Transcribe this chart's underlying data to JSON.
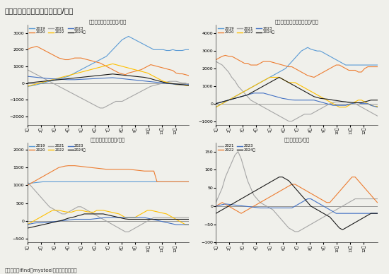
{
  "title": "图表：生猪养殖相关利润（元/头）",
  "source": "资料来源：ifind、mysteel、新湖期货研究所",
  "bg_color": "#f0f0eb",
  "header_bar_color": "#1a7070",
  "title_color": "#222222",
  "panel_titles": [
    "外购仔猪养殖利润（元/吨）",
    "自繁自养生猪养殖利润（元/吨）",
    "仔猪出售毛利润（元/头）",
    "屠宰利润（元/头）"
  ],
  "n_points": 52,
  "panel1": {
    "legend": [
      "2019",
      "2020",
      "2021",
      "2022",
      "2023",
      "2024年"
    ],
    "colors": [
      "#5b9bd5",
      "#ed7d31",
      "#a5a5a5",
      "#ffc000",
      "#4472c4",
      "#1a1a1a"
    ],
    "ylim": [
      -2500,
      3500
    ],
    "yticks": [
      -2000,
      -1000,
      0,
      1000,
      2000,
      3000
    ],
    "series": {
      "2019": [
        -200,
        -180,
        -150,
        -100,
        -50,
        0,
        50,
        100,
        150,
        200,
        250,
        300,
        350,
        400,
        500,
        600,
        700,
        800,
        900,
        1000,
        1100,
        1200,
        1300,
        1400,
        1500,
        1600,
        1800,
        2000,
        2200,
        2400,
        2600,
        2700,
        2800,
        2700,
        2600,
        2500,
        2400,
        2300,
        2200,
        2100,
        2000,
        2000,
        2000,
        2000,
        1950,
        1950,
        2000,
        1950,
        1950,
        1950,
        2000,
        2000
      ],
      "2020": [
        2000,
        2100,
        2150,
        2200,
        2100,
        2000,
        1900,
        1800,
        1700,
        1600,
        1500,
        1450,
        1400,
        1400,
        1450,
        1500,
        1500,
        1500,
        1450,
        1400,
        1350,
        1300,
        1250,
        1200,
        1100,
        1000,
        900,
        800,
        700,
        600,
        550,
        500,
        600,
        650,
        700,
        750,
        800,
        900,
        1000,
        1100,
        1050,
        1000,
        950,
        900,
        850,
        800,
        750,
        600,
        550,
        550,
        500,
        450
      ],
      "2021": [
        800,
        700,
        600,
        500,
        400,
        300,
        200,
        100,
        0,
        -100,
        -200,
        -300,
        -400,
        -500,
        -600,
        -700,
        -800,
        -900,
        -1000,
        -1100,
        -1200,
        -1300,
        -1400,
        -1500,
        -1500,
        -1400,
        -1300,
        -1200,
        -1100,
        -1100,
        -1100,
        -1000,
        -900,
        -800,
        -700,
        -600,
        -500,
        -400,
        -300,
        -200,
        -150,
        -100,
        -50,
        0,
        50,
        100,
        100,
        100,
        50,
        0,
        0,
        -100
      ],
      "2022": [
        -200,
        -150,
        -100,
        -50,
        0,
        50,
        100,
        150,
        200,
        250,
        300,
        350,
        400,
        450,
        500,
        550,
        600,
        650,
        700,
        750,
        800,
        850,
        900,
        950,
        1000,
        1050,
        1100,
        1150,
        1100,
        1050,
        1000,
        950,
        900,
        850,
        800,
        750,
        700,
        650,
        600,
        500,
        400,
        300,
        200,
        100,
        50,
        0,
        -50,
        -100,
        -100,
        -100,
        -150,
        -150
      ],
      "2023": [
        400,
        380,
        360,
        340,
        320,
        300,
        280,
        260,
        250,
        240,
        230,
        220,
        210,
        200,
        200,
        200,
        210,
        220,
        230,
        240,
        250,
        260,
        270,
        280,
        290,
        300,
        310,
        320,
        300,
        280,
        260,
        240,
        220,
        200,
        180,
        160,
        140,
        120,
        100,
        80,
        60,
        40,
        20,
        0,
        -20,
        -40,
        -60,
        -80,
        -100,
        -100,
        -100,
        -100
      ],
      "2024": [
        0,
        20,
        40,
        60,
        80,
        100,
        120,
        140,
        160,
        180,
        200,
        220,
        240,
        260,
        280,
        300,
        320,
        340,
        360,
        380,
        400,
        420,
        440,
        460,
        480,
        500,
        520,
        540,
        520,
        500,
        480,
        460,
        440,
        420,
        400,
        380,
        360,
        340,
        300,
        260,
        200,
        150,
        100,
        50,
        0,
        -20,
        -40,
        -60,
        -80,
        -100,
        -120,
        -150
      ]
    }
  },
  "panel2": {
    "legend": [
      "2019",
      "2020",
      "2021",
      "2022",
      "2023",
      "2024年"
    ],
    "colors": [
      "#5b9bd5",
      "#ed7d31",
      "#a5a5a5",
      "#ffc000",
      "#4472c4",
      "#1a1a1a"
    ],
    "ylim": [
      -1200,
      4500
    ],
    "yticks": [
      -1000,
      0,
      1000,
      2000,
      3000,
      4000
    ],
    "series": {
      "2019": [
        -200,
        -100,
        0,
        100,
        200,
        300,
        400,
        500,
        600,
        700,
        800,
        900,
        1000,
        1100,
        1200,
        1300,
        1400,
        1500,
        1600,
        1700,
        1800,
        1900,
        2000,
        2200,
        2400,
        2600,
        2800,
        3000,
        3100,
        3200,
        3100,
        3050,
        3000,
        3000,
        2900,
        2800,
        2700,
        2600,
        2500,
        2400,
        2300,
        2200,
        2200,
        2200,
        2200,
        2200,
        2200,
        2200,
        2200,
        2200,
        2200,
        2200
      ],
      "2020": [
        2500,
        2600,
        2700,
        2750,
        2700,
        2700,
        2600,
        2500,
        2400,
        2300,
        2300,
        2200,
        2200,
        2200,
        2300,
        2400,
        2400,
        2400,
        2350,
        2300,
        2250,
        2200,
        2150,
        2100,
        2100,
        2000,
        1900,
        1800,
        1700,
        1600,
        1550,
        1500,
        1600,
        1700,
        1800,
        1900,
        2000,
        2100,
        2200,
        2200,
        2100,
        2000,
        1900,
        1900,
        1900,
        1800,
        1800,
        2000,
        2100,
        2100,
        2100,
        2100
      ],
      "2021": [
        2400,
        2300,
        2200,
        2000,
        1800,
        1500,
        1300,
        1000,
        800,
        600,
        400,
        200,
        100,
        0,
        -100,
        -200,
        -300,
        -400,
        -500,
        -600,
        -700,
        -800,
        -900,
        -1000,
        -1000,
        -900,
        -800,
        -700,
        -600,
        -600,
        -600,
        -500,
        -400,
        -300,
        -200,
        -100,
        0,
        50,
        100,
        100,
        100,
        100,
        50,
        0,
        0,
        -100,
        -200,
        -300,
        -400,
        -500,
        -600,
        -700
      ],
      "2022": [
        -200,
        -100,
        0,
        100,
        200,
        300,
        400,
        500,
        600,
        700,
        800,
        900,
        1000,
        1100,
        1200,
        1300,
        1400,
        1500,
        1500,
        1500,
        1500,
        1400,
        1300,
        1200,
        1200,
        1200,
        1100,
        1000,
        900,
        800,
        700,
        600,
        500,
        400,
        300,
        200,
        100,
        0,
        -100,
        -200,
        -200,
        -200,
        -100,
        0,
        100,
        200,
        200,
        100,
        0,
        -100,
        -150,
        -150
      ],
      "2023": [
        0,
        50,
        100,
        150,
        200,
        250,
        300,
        350,
        400,
        450,
        500,
        550,
        600,
        600,
        600,
        600,
        550,
        500,
        450,
        400,
        350,
        300,
        270,
        240,
        210,
        200,
        200,
        200,
        200,
        200,
        200,
        200,
        150,
        100,
        50,
        0,
        -50,
        -100,
        -100,
        -100,
        -100,
        -100,
        -50,
        0,
        50,
        50,
        0,
        0,
        0,
        -100,
        -150,
        -200
      ],
      "2024": [
        0,
        50,
        100,
        150,
        200,
        250,
        300,
        350,
        400,
        450,
        500,
        600,
        700,
        800,
        900,
        1000,
        1100,
        1200,
        1300,
        1400,
        1500,
        1400,
        1300,
        1200,
        1100,
        1000,
        900,
        800,
        700,
        600,
        500,
        400,
        350,
        300,
        280,
        260,
        240,
        200,
        180,
        150,
        120,
        100,
        80,
        60,
        50,
        50,
        50,
        100,
        150,
        200,
        200,
        200
      ]
    }
  },
  "panel3": {
    "legend": [
      "2019",
      "2020",
      "2021",
      "2022",
      "2023",
      "2024年"
    ],
    "colors": [
      "#5b9bd5",
      "#ed7d31",
      "#a5a5a5",
      "#ffc000",
      "#4472c4",
      "#1a1a1a"
    ],
    "ylim": [
      -600,
      2200
    ],
    "yticks": [
      -500,
      0,
      500,
      1000,
      1500,
      2000
    ],
    "series": {
      "2019": [
        1050,
        1060,
        1070,
        1080,
        1090,
        1100,
        1100,
        1100,
        1100,
        1100,
        1100,
        1100,
        1100,
        1100,
        1100,
        1100,
        1100,
        1100,
        1100,
        1100,
        1100,
        1100,
        1100,
        1100,
        1100,
        1100,
        1100,
        1100,
        1100,
        1100,
        1100,
        1100,
        1100,
        1100,
        1100,
        1100,
        1100,
        1100,
        1100,
        1100,
        1100,
        1100,
        1100,
        1100,
        1100,
        1100,
        1100,
        1100,
        1100,
        1100,
        1100,
        1100
      ],
      "2020": [
        1000,
        1050,
        1100,
        1150,
        1200,
        1250,
        1300,
        1350,
        1400,
        1450,
        1500,
        1520,
        1540,
        1550,
        1550,
        1550,
        1540,
        1530,
        1520,
        1510,
        1500,
        1490,
        1480,
        1470,
        1460,
        1450,
        1450,
        1450,
        1450,
        1450,
        1450,
        1450,
        1450,
        1440,
        1430,
        1420,
        1410,
        1400,
        1400,
        1400,
        1400,
        1100,
        1100,
        1100,
        1100,
        1100,
        1100,
        1100,
        1100,
        1100,
        1100,
        1100
      ],
      "2021": [
        1100,
        1000,
        900,
        800,
        700,
        600,
        500,
        400,
        350,
        300,
        250,
        200,
        200,
        250,
        300,
        350,
        400,
        400,
        350,
        300,
        250,
        200,
        150,
        100,
        50,
        0,
        -50,
        -100,
        -150,
        -200,
        -250,
        -300,
        -300,
        -250,
        -200,
        -150,
        -100,
        -50,
        0,
        50,
        100,
        100,
        100,
        100,
        100,
        100,
        100,
        100,
        100,
        100,
        100,
        100
      ],
      "2022": [
        -100,
        -50,
        0,
        50,
        100,
        150,
        200,
        250,
        300,
        300,
        300,
        280,
        260,
        250,
        250,
        280,
        300,
        300,
        280,
        260,
        250,
        250,
        300,
        300,
        300,
        280,
        260,
        240,
        220,
        200,
        150,
        100,
        100,
        100,
        100,
        150,
        200,
        250,
        300,
        300,
        280,
        260,
        240,
        220,
        200,
        150,
        100,
        50,
        0,
        -50,
        -100,
        -100
      ],
      "2023": [
        -100,
        -80,
        -60,
        -50,
        -50,
        -50,
        -40,
        -30,
        -20,
        -10,
        0,
        10,
        20,
        30,
        40,
        50,
        50,
        50,
        50,
        50,
        50,
        60,
        70,
        80,
        90,
        100,
        100,
        100,
        100,
        100,
        100,
        100,
        100,
        100,
        100,
        100,
        100,
        100,
        80,
        60,
        40,
        20,
        0,
        -20,
        -40,
        -60,
        -80,
        -100,
        -100,
        -100,
        -100,
        -100
      ],
      "2024": [
        -200,
        -180,
        -160,
        -140,
        -120,
        -100,
        -80,
        -60,
        -40,
        -20,
        0,
        20,
        50,
        80,
        100,
        120,
        150,
        170,
        200,
        200,
        200,
        200,
        200,
        200,
        200,
        180,
        160,
        140,
        120,
        100,
        80,
        60,
        50,
        50,
        50,
        50,
        50,
        50,
        50,
        50,
        50,
        50,
        50,
        50,
        50,
        50,
        50,
        50,
        50,
        50,
        50,
        50
      ]
    }
  },
  "panel4": {
    "legend": [
      "2021",
      "2022",
      "2023",
      "2024年"
    ],
    "colors": [
      "#a5a5a5",
      "#ed7d31",
      "#4472c4",
      "#1a1a1a"
    ],
    "ylim": [
      -100,
      175
    ],
    "yticks": [
      -100,
      -50,
      0,
      50,
      100,
      150
    ],
    "series": {
      "2021": [
        10,
        30,
        50,
        80,
        100,
        120,
        140,
        150,
        130,
        100,
        70,
        50,
        30,
        20,
        10,
        5,
        0,
        -5,
        -10,
        -20,
        -30,
        -40,
        -50,
        -60,
        -65,
        -70,
        -70,
        -65,
        -60,
        -55,
        -50,
        -45,
        -40,
        -35,
        -30,
        -25,
        -20,
        -15,
        -10,
        -5,
        0,
        5,
        10,
        15,
        20,
        20,
        20,
        20,
        20,
        20,
        20,
        20
      ],
      "2022": [
        0,
        5,
        10,
        5,
        0,
        -5,
        -10,
        -15,
        -20,
        -15,
        -10,
        -5,
        0,
        5,
        10,
        15,
        20,
        25,
        30,
        35,
        40,
        45,
        50,
        55,
        60,
        60,
        55,
        50,
        45,
        40,
        35,
        30,
        25,
        20,
        15,
        10,
        10,
        20,
        30,
        40,
        50,
        60,
        70,
        80,
        80,
        70,
        60,
        50,
        40,
        30,
        20,
        10
      ],
      "2023": [
        0,
        2,
        4,
        6,
        5,
        4,
        3,
        2,
        1,
        0,
        -1,
        -2,
        -3,
        -4,
        -5,
        -5,
        -5,
        -5,
        -5,
        -5,
        -5,
        -5,
        -5,
        -5,
        -5,
        0,
        5,
        10,
        15,
        20,
        20,
        15,
        10,
        5,
        0,
        -5,
        -10,
        -15,
        -20,
        -20,
        -20,
        -20,
        -20,
        -20,
        -20,
        -20,
        -20,
        -20,
        -20,
        -20,
        -20,
        -20
      ],
      "2024": [
        -20,
        -15,
        -10,
        -5,
        0,
        5,
        10,
        15,
        20,
        25,
        30,
        35,
        40,
        45,
        50,
        55,
        60,
        65,
        70,
        75,
        80,
        80,
        75,
        70,
        60,
        50,
        40,
        30,
        20,
        10,
        0,
        -5,
        -10,
        -15,
        -20,
        -25,
        -30,
        -40,
        -50,
        -60,
        -65,
        -60,
        -55,
        -50,
        -45,
        -40,
        -35,
        -30,
        -25,
        -20,
        -20,
        -20
      ]
    }
  }
}
